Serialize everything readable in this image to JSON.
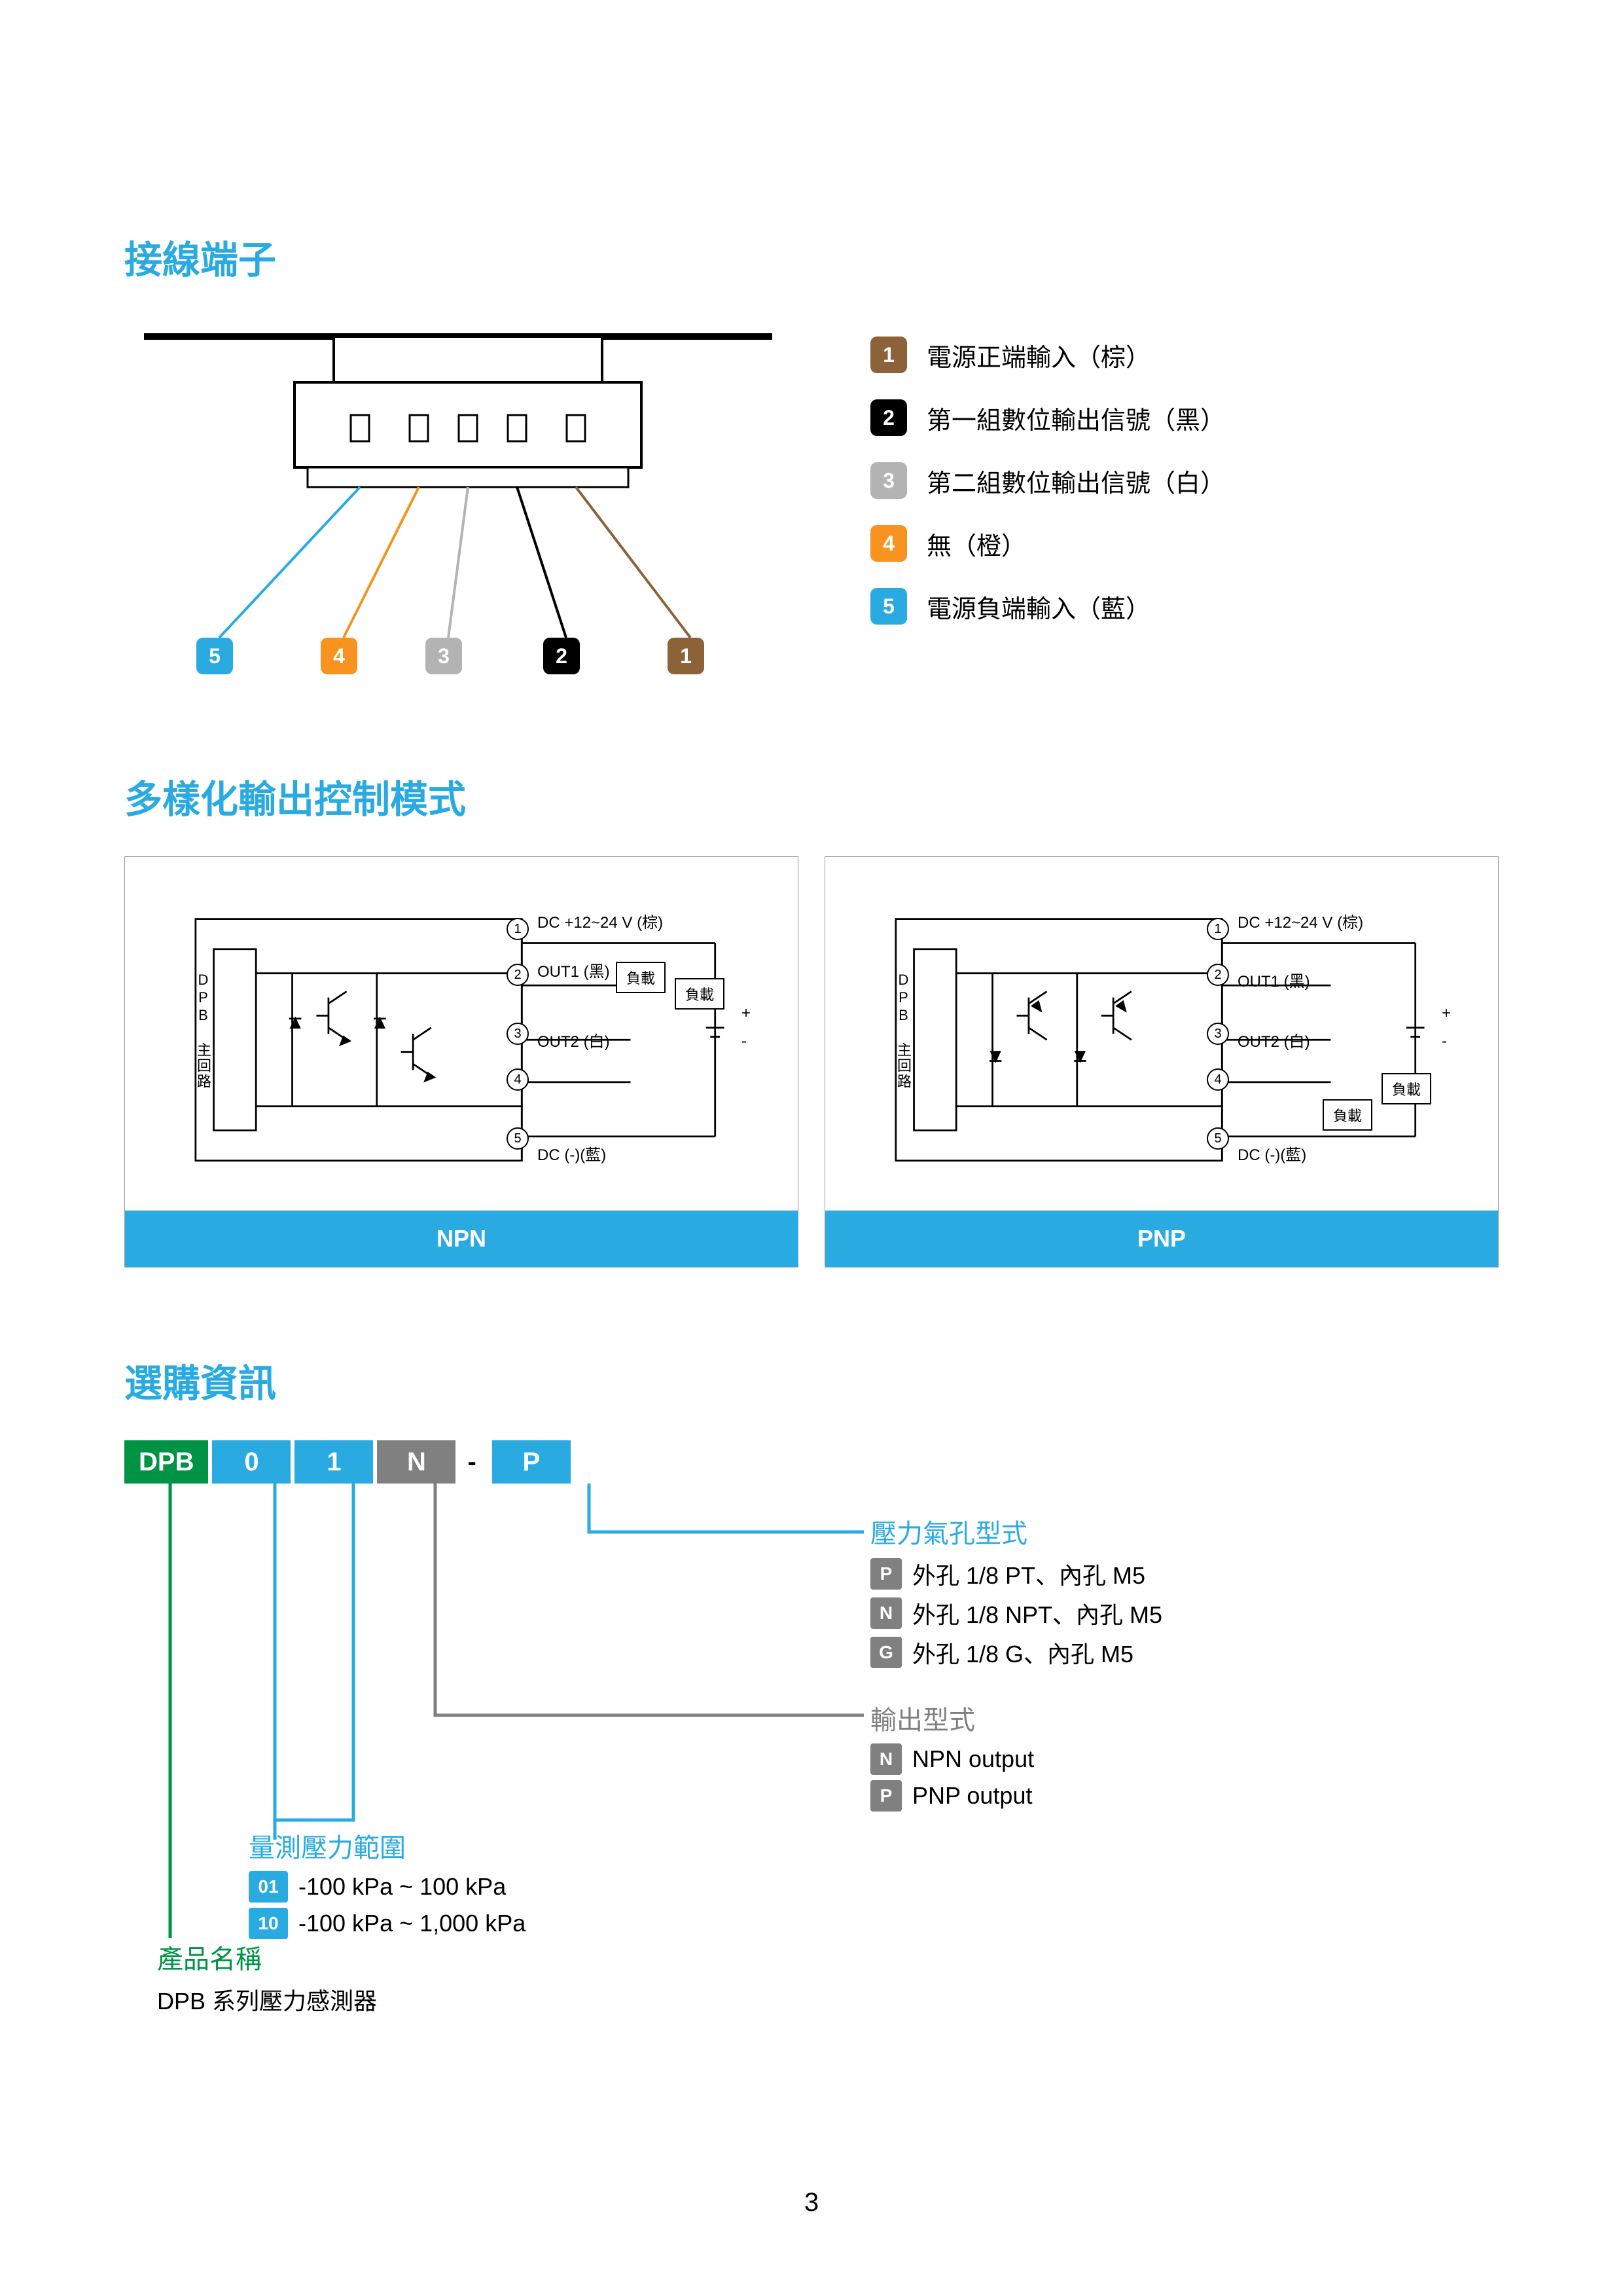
{
  "colors": {
    "accent": "#29abe2",
    "brown": "#8c6239",
    "black": "#000000",
    "gray": "#b3b3b3",
    "orange": "#f7931e",
    "blue": "#29abe2",
    "green": "#009245",
    "darkgray": "#808080"
  },
  "section1": {
    "title": "接線端子",
    "pins": [
      {
        "num": "1",
        "color": "#8c6239",
        "label": "電源正端輸入（棕）"
      },
      {
        "num": "2",
        "color": "#000000",
        "label": "第一組數位輸出信號（黑）"
      },
      {
        "num": "3",
        "color": "#b3b3b3",
        "label": "第二組數位輸出信號（白）"
      },
      {
        "num": "4",
        "color": "#f7931e",
        "label": "無（橙）"
      },
      {
        "num": "5",
        "color": "#29abe2",
        "label": "電源負端輸入（藍）"
      }
    ],
    "diagram_order": [
      "5",
      "4",
      "3",
      "2",
      "1"
    ]
  },
  "section2": {
    "title": "多樣化輸出控制模式",
    "left_label": "NPN",
    "right_label": "PNP",
    "main_block": "DPB 主回路",
    "pin_labels": {
      "1": "DC +12~24 V (棕)",
      "2": "OUT1 (黑)",
      "3": "OUT2 (白)",
      "4": "",
      "5": "DC (-)(藍)"
    },
    "load": "負載",
    "plus": "+",
    "minus": "-"
  },
  "section3": {
    "title": "選購資訊",
    "blocks": [
      {
        "text": "DPB",
        "color": "#009245"
      },
      {
        "text": "0",
        "color": "#29abe2"
      },
      {
        "text": "1",
        "color": "#29abe2"
      },
      {
        "text": "N",
        "color": "#808080"
      },
      {
        "text": "-",
        "color": null
      },
      {
        "text": "P",
        "color": "#29abe2"
      }
    ],
    "groups": {
      "port": {
        "title": "壓力氣孔型式",
        "title_color": "#29abe2",
        "items": [
          {
            "chip": "P",
            "chip_color": "#808080",
            "text": "外孔 1/8 PT、內孔 M5"
          },
          {
            "chip": "N",
            "chip_color": "#808080",
            "text": "外孔 1/8 NPT、內孔 M5"
          },
          {
            "chip": "G",
            "chip_color": "#808080",
            "text": "外孔 1/8 G、內孔 M5"
          }
        ]
      },
      "output": {
        "title": "輸出型式",
        "title_color": "#808080",
        "items": [
          {
            "chip": "N",
            "chip_color": "#808080",
            "text": "NPN output"
          },
          {
            "chip": "P",
            "chip_color": "#808080",
            "text": "PNP output"
          }
        ]
      },
      "range": {
        "title": "量測壓力範圍",
        "title_color": "#29abe2",
        "items": [
          {
            "chip": "01",
            "chip_color": "#29abe2",
            "text": "-100 kPa ~ 100 kPa"
          },
          {
            "chip": "10",
            "chip_color": "#29abe2",
            "text": "-100 kPa ~ 1,000 kPa"
          }
        ]
      },
      "name": {
        "title": "產品名稱",
        "title_color": "#009245",
        "sub": "DPB 系列壓力感測器"
      }
    }
  },
  "page": "3"
}
